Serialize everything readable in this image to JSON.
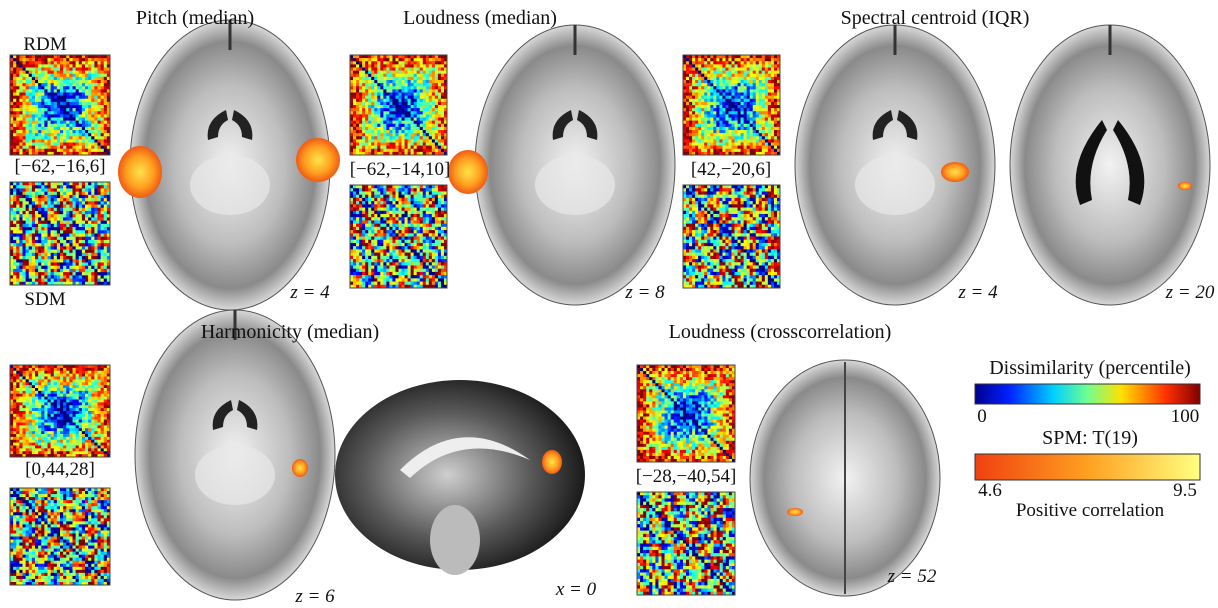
{
  "panels": [
    {
      "title": "Pitch (median)",
      "rdm_label": "RDM",
      "sdm_label": "SDM",
      "coordinate": "[−62,−16,6]",
      "slices": [
        "z = 4"
      ]
    },
    {
      "title": "Loudness (median)",
      "coordinate": "[−62,−14,10]",
      "slices": [
        "z = 8"
      ]
    },
    {
      "title": "Spectral centroid (IQR)",
      "coordinate": "[42,−20,6]",
      "slices": [
        "z = 4",
        "z = 20"
      ]
    },
    {
      "title": "Harmonicity (median)",
      "coordinate": "[0,44,28]",
      "slices": [
        "z = 6",
        "x = 0"
      ]
    },
    {
      "title": "Loudness (crosscorrelation)",
      "coordinate": "[−28,−40,54]",
      "slices": [
        "z = 52"
      ]
    }
  ],
  "legend": {
    "dissimilarity": {
      "title": "Dissimilarity (percentile)",
      "range": [
        0,
        100
      ]
    },
    "spm": {
      "title": "SPM: T(19)",
      "range": [
        4.6,
        9.5
      ],
      "caption": "Positive correlation"
    }
  }
}
